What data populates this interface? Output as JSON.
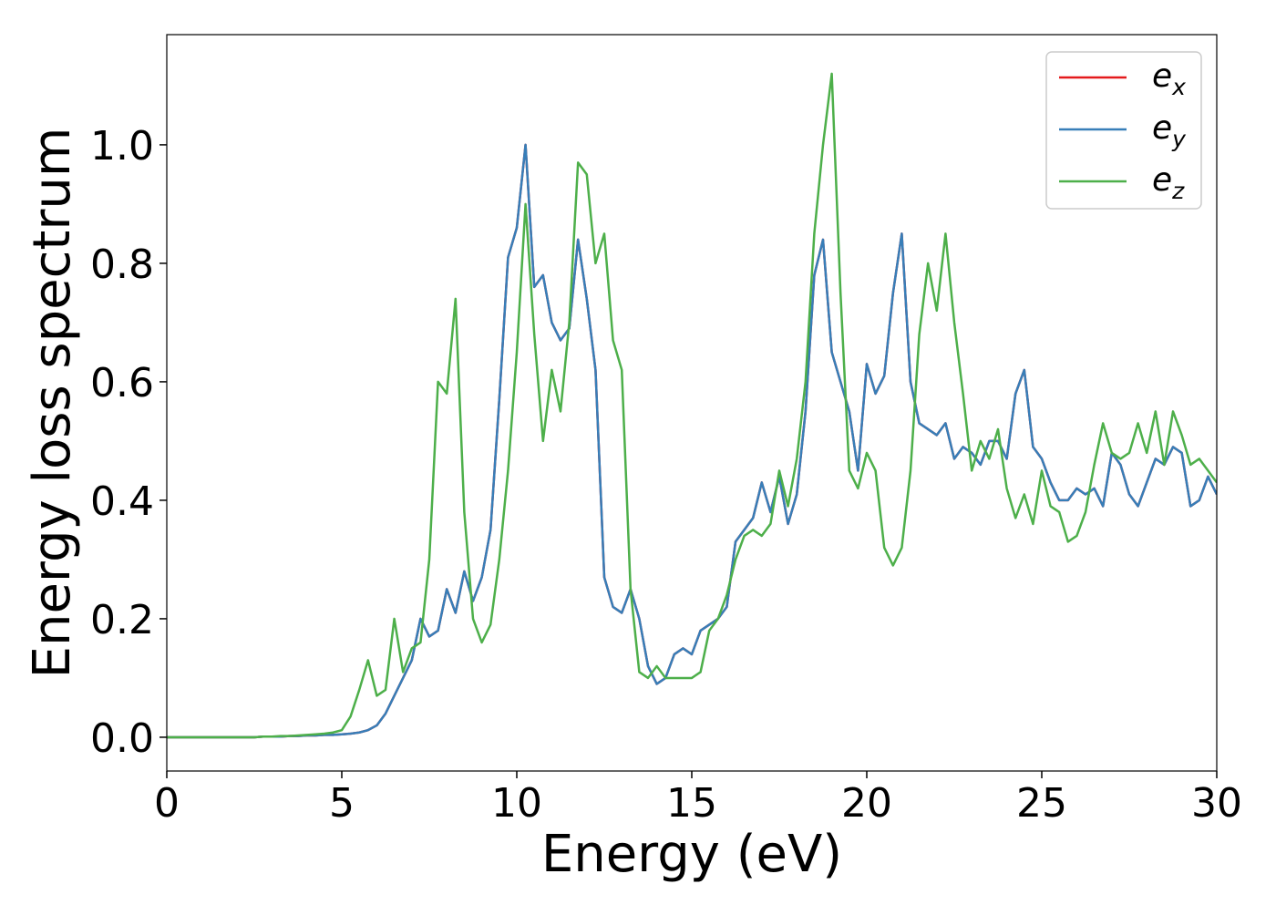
{
  "chart_data": {
    "type": "line",
    "xlabel": "Energy (eV)",
    "ylabel": "Energy loss spectrum",
    "x": [
      0,
      0.25,
      0.5,
      0.75,
      1,
      1.25,
      1.5,
      1.75,
      2,
      2.25,
      2.5,
      2.75,
      3,
      3.25,
      3.5,
      3.75,
      4,
      4.25,
      4.5,
      4.75,
      5,
      5.25,
      5.5,
      5.75,
      6,
      6.25,
      6.5,
      6.75,
      7,
      7.25,
      7.5,
      7.75,
      8,
      8.25,
      8.5,
      8.75,
      9,
      9.25,
      9.5,
      9.75,
      10,
      10.25,
      10.5,
      10.75,
      11,
      11.25,
      11.5,
      11.75,
      12,
      12.25,
      12.5,
      12.75,
      13,
      13.25,
      13.5,
      13.75,
      14,
      14.25,
      14.5,
      14.75,
      15,
      15.25,
      15.5,
      15.75,
      16,
      16.25,
      16.5,
      16.75,
      17,
      17.25,
      17.5,
      17.75,
      18,
      18.25,
      18.5,
      18.75,
      19,
      19.25,
      19.5,
      19.75,
      20,
      20.25,
      20.5,
      20.75,
      21,
      21.25,
      21.5,
      21.75,
      22,
      22.25,
      22.5,
      22.75,
      23,
      23.25,
      23.5,
      23.75,
      24,
      24.25,
      24.5,
      24.75,
      25,
      25.25,
      25.5,
      25.75,
      26,
      26.25,
      26.5,
      26.75,
      27,
      27.25,
      27.5,
      27.75,
      28,
      28.25,
      28.5,
      28.75,
      29,
      29.25,
      29.5,
      29.75,
      30
    ],
    "series": [
      {
        "name": "e_x",
        "color": "#e41a1c",
        "values": [
          0,
          0,
          0,
          0,
          0,
          0,
          0,
          0,
          0,
          0,
          0,
          0.001,
          0.001,
          0.001,
          0.002,
          0.002,
          0.003,
          0.003,
          0.004,
          0.004,
          0.005,
          0.006,
          0.008,
          0.012,
          0.02,
          0.04,
          0.07,
          0.1,
          0.13,
          0.2,
          0.17,
          0.18,
          0.25,
          0.21,
          0.28,
          0.23,
          0.27,
          0.35,
          0.57,
          0.81,
          0.86,
          1.0,
          0.76,
          0.78,
          0.7,
          0.67,
          0.69,
          0.84,
          0.74,
          0.62,
          0.27,
          0.22,
          0.21,
          0.25,
          0.2,
          0.12,
          0.09,
          0.1,
          0.14,
          0.15,
          0.14,
          0.18,
          0.19,
          0.2,
          0.22,
          0.33,
          0.35,
          0.37,
          0.43,
          0.38,
          0.44,
          0.36,
          0.41,
          0.55,
          0.78,
          0.84,
          0.65,
          0.6,
          0.55,
          0.45,
          0.63,
          0.58,
          0.61,
          0.75,
          0.85,
          0.6,
          0.53,
          0.52,
          0.51,
          0.53,
          0.47,
          0.49,
          0.48,
          0.46,
          0.5,
          0.5,
          0.47,
          0.58,
          0.62,
          0.49,
          0.47,
          0.43,
          0.4,
          0.4,
          0.42,
          0.41,
          0.42,
          0.39,
          0.48,
          0.46,
          0.41,
          0.39,
          0.43,
          0.47,
          0.46,
          0.49,
          0.48,
          0.39,
          0.4,
          0.44,
          0.41
        ]
      },
      {
        "name": "e_y",
        "color": "#377eb8",
        "values": [
          0,
          0,
          0,
          0,
          0,
          0,
          0,
          0,
          0,
          0,
          0,
          0.001,
          0.001,
          0.001,
          0.002,
          0.002,
          0.003,
          0.003,
          0.004,
          0.004,
          0.005,
          0.006,
          0.008,
          0.012,
          0.02,
          0.04,
          0.07,
          0.1,
          0.13,
          0.2,
          0.17,
          0.18,
          0.25,
          0.21,
          0.28,
          0.23,
          0.27,
          0.35,
          0.57,
          0.81,
          0.86,
          1.0,
          0.76,
          0.78,
          0.7,
          0.67,
          0.69,
          0.84,
          0.74,
          0.62,
          0.27,
          0.22,
          0.21,
          0.25,
          0.2,
          0.12,
          0.09,
          0.1,
          0.14,
          0.15,
          0.14,
          0.18,
          0.19,
          0.2,
          0.22,
          0.33,
          0.35,
          0.37,
          0.43,
          0.38,
          0.44,
          0.36,
          0.41,
          0.55,
          0.78,
          0.84,
          0.65,
          0.6,
          0.55,
          0.45,
          0.63,
          0.58,
          0.61,
          0.75,
          0.85,
          0.6,
          0.53,
          0.52,
          0.51,
          0.53,
          0.47,
          0.49,
          0.48,
          0.46,
          0.5,
          0.5,
          0.47,
          0.58,
          0.62,
          0.49,
          0.47,
          0.43,
          0.4,
          0.4,
          0.42,
          0.41,
          0.42,
          0.39,
          0.48,
          0.46,
          0.41,
          0.39,
          0.43,
          0.47,
          0.46,
          0.49,
          0.48,
          0.39,
          0.4,
          0.44,
          0.41
        ]
      },
      {
        "name": "e_z",
        "color": "#4daf4a",
        "values": [
          0,
          0,
          0,
          0,
          0,
          0,
          0,
          0,
          0,
          0,
          0,
          0.001,
          0.001,
          0.002,
          0.002,
          0.003,
          0.004,
          0.005,
          0.006,
          0.008,
          0.012,
          0.035,
          0.08,
          0.13,
          0.07,
          0.08,
          0.2,
          0.11,
          0.15,
          0.16,
          0.3,
          0.6,
          0.58,
          0.74,
          0.38,
          0.2,
          0.16,
          0.19,
          0.3,
          0.45,
          0.65,
          0.9,
          0.68,
          0.5,
          0.62,
          0.55,
          0.7,
          0.97,
          0.95,
          0.8,
          0.85,
          0.67,
          0.62,
          0.25,
          0.11,
          0.1,
          0.12,
          0.1,
          0.1,
          0.1,
          0.1,
          0.11,
          0.18,
          0.2,
          0.24,
          0.3,
          0.34,
          0.35,
          0.34,
          0.36,
          0.45,
          0.39,
          0.47,
          0.6,
          0.85,
          1.0,
          1.12,
          0.75,
          0.45,
          0.42,
          0.48,
          0.45,
          0.32,
          0.29,
          0.32,
          0.45,
          0.68,
          0.8,
          0.72,
          0.85,
          0.7,
          0.58,
          0.45,
          0.5,
          0.47,
          0.52,
          0.42,
          0.37,
          0.41,
          0.36,
          0.45,
          0.39,
          0.38,
          0.33,
          0.34,
          0.38,
          0.46,
          0.53,
          0.48,
          0.47,
          0.48,
          0.53,
          0.48,
          0.55,
          0.46,
          0.55,
          0.51,
          0.46,
          0.47,
          0.45,
          0.43
        ]
      }
    ],
    "xlim": [
      0,
      30
    ],
    "xticks": [
      0,
      5,
      10,
      15,
      20,
      25,
      30
    ],
    "ylim": [
      -0.057,
      1.186
    ],
    "yticks": [
      {
        "value": 0,
        "label": "0.0"
      },
      0.2,
      0.4,
      0.6,
      0.8,
      {
        "value": 1,
        "label": "1.0"
      }
    ],
    "legend": "upper right"
  }
}
